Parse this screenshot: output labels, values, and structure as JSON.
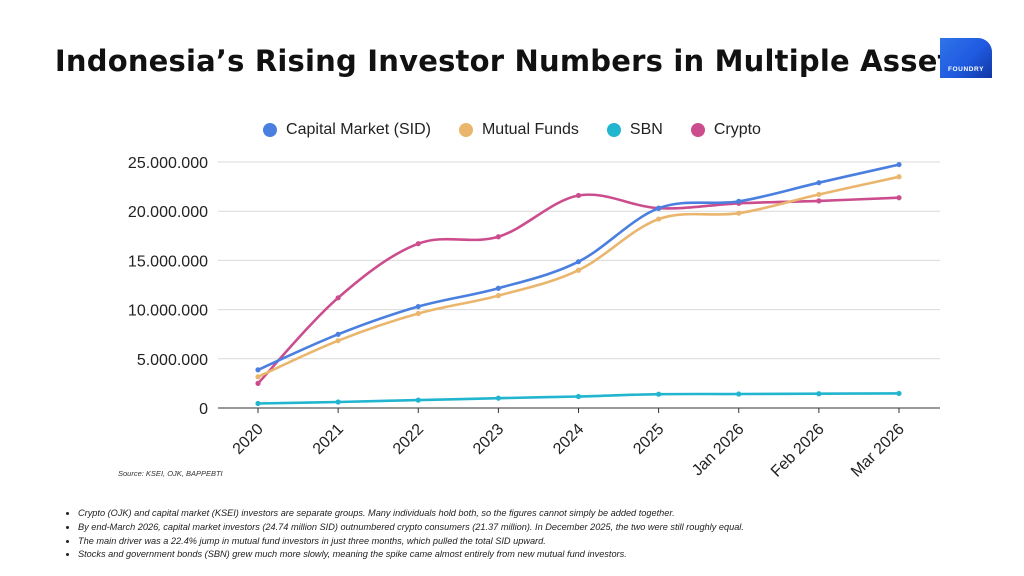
{
  "title": "Indonesia’s Rising Investor Numbers in Multiple Assets",
  "brand": {
    "logo_text": "FOUNDRY",
    "color": "#1f5ae0"
  },
  "source": "Source: KSEI, OJK, BAPPEBTI",
  "notes": [
    "Crypto (OJK) and capital market (KSEI) investors are separate groups. Many individuals hold both, so the figures cannot simply be added together.",
    "By end-March 2026, capital market investors (24.74 million SID) outnumbered crypto consumers (21.37 million). In December 2025, the two were still roughly equal.",
    "The main driver was a 22.4% jump in mutual fund investors in just three months, which pulled the total SID upward.",
    "Stocks and government bonds (SBN) grew much more slowly, meaning the spike came almost entirely from new mutual fund investors."
  ],
  "chart_data": {
    "type": "line",
    "title": "Indonesia’s Rising Investor Numbers in Multiple Assets",
    "xlabel": "",
    "ylabel": "",
    "categories": [
      "2020",
      "2021",
      "2022",
      "2023",
      "2024",
      "2025",
      "Jan 2026",
      "Feb 2026",
      "Mar 2026"
    ],
    "ylim": [
      0,
      25000000
    ],
    "yticks": [
      0,
      5000000,
      10000000,
      15000000,
      20000000,
      25000000
    ],
    "ytick_labels": [
      "0",
      "5.000.000",
      "10.000.000",
      "15.000.000",
      "20.000.000",
      "25.000.000"
    ],
    "grid": "horizontal",
    "legend_position": "top-center",
    "series": [
      {
        "name": "Capital Market (SID)",
        "color": "#4a7fe0",
        "values": [
          3880000,
          7490000,
          10310000,
          12170000,
          14870000,
          20300000,
          21000000,
          22900000,
          24740000
        ]
      },
      {
        "name": "Mutual Funds",
        "color": "#eab66e",
        "values": [
          3170000,
          6840000,
          9600000,
          11420000,
          14000000,
          19200000,
          19800000,
          21700000,
          23500000
        ]
      },
      {
        "name": "SBN",
        "color": "#22b5cf",
        "values": [
          460000,
          610000,
          800000,
          1000000,
          1170000,
          1400000,
          1420000,
          1450000,
          1480000
        ]
      },
      {
        "name": "Crypto",
        "color": "#cc4d8d",
        "values": [
          2500000,
          11200000,
          16700000,
          17400000,
          21600000,
          20300000,
          20800000,
          21050000,
          21370000
        ]
      }
    ]
  }
}
